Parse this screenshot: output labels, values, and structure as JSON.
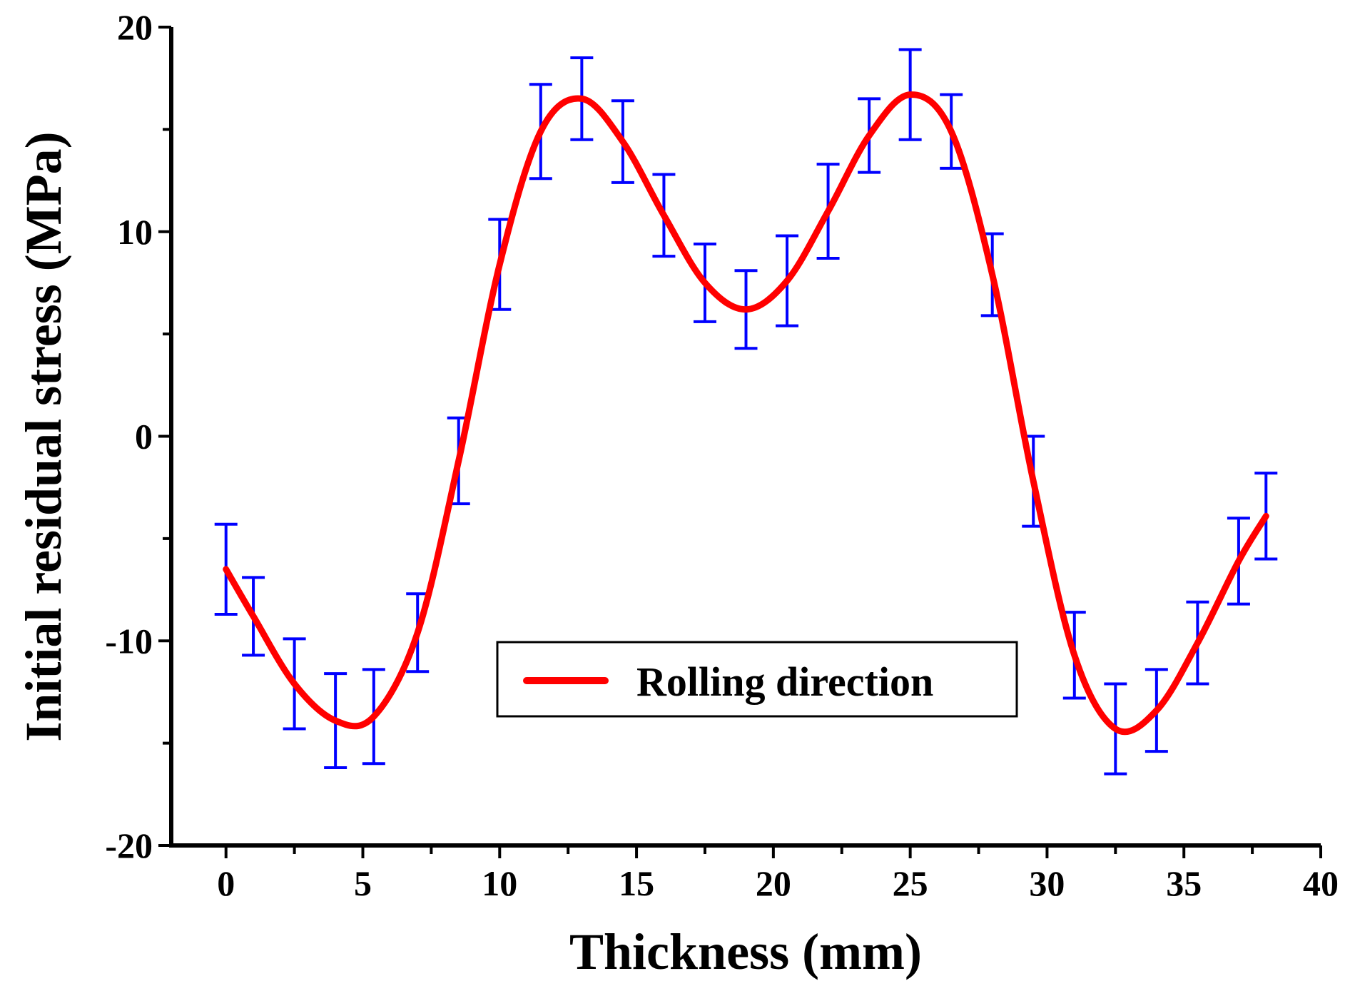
{
  "chart_data": {
    "type": "line",
    "title": "",
    "xlabel": "Thickness (mm)",
    "ylabel": "Initial residual stress (MPa)",
    "xlim": [
      -2,
      40
    ],
    "ylim": [
      -20,
      20
    ],
    "xticks": [
      "0",
      "5",
      "10",
      "15",
      "20",
      "25",
      "30",
      "35",
      "40"
    ],
    "yticks": [
      "-20",
      "-10",
      "0",
      "10",
      "20"
    ],
    "grid": false,
    "legend": {
      "position": "center-bottom",
      "entries": [
        "Rolling direction"
      ]
    },
    "colors": {
      "line": "#ff0000",
      "error_bars": "#0000ff",
      "axes": "#000000"
    },
    "series": [
      {
        "name": "Rolling direction",
        "x": [
          0,
          1,
          2.5,
          4,
          5.4,
          7,
          8.5,
          10,
          11.5,
          13,
          14.5,
          16,
          17.5,
          19,
          20.5,
          22,
          23.5,
          25,
          26.5,
          28,
          29.5,
          31,
          32.5,
          34,
          35.5,
          37,
          38
        ],
        "y": [
          -6.5,
          -8.8,
          -12.1,
          -13.9,
          -13.7,
          -9.6,
          -1.2,
          8.4,
          14.9,
          16.5,
          14.4,
          10.8,
          7.5,
          6.2,
          7.6,
          11.0,
          14.7,
          16.7,
          14.9,
          7.9,
          -2.2,
          -10.7,
          -14.3,
          -13.4,
          -10.1,
          -6.1,
          -3.9
        ],
        "error": [
          2.2,
          1.9,
          2.2,
          2.3,
          2.3,
          1.9,
          2.1,
          2.2,
          2.3,
          2.0,
          2.0,
          2.0,
          1.9,
          1.9,
          2.2,
          2.3,
          1.8,
          2.2,
          1.8,
          2.0,
          2.2,
          2.1,
          2.2,
          2.0,
          2.0,
          2.1,
          2.1
        ]
      }
    ]
  }
}
